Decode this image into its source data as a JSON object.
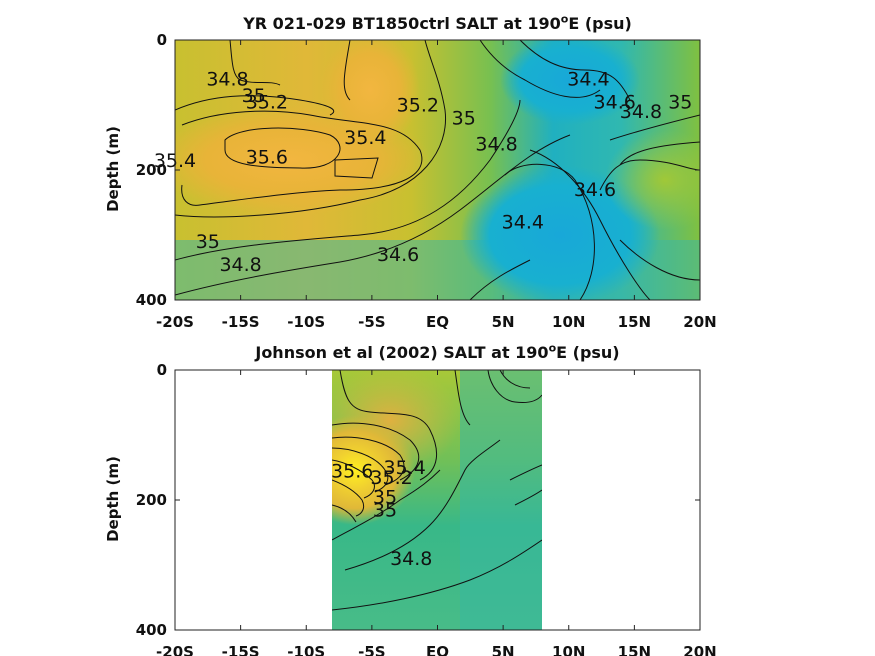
{
  "chart_data": [
    {
      "type": "heatmap",
      "title": "YR 021-029 BT1850ctrl SALT at 190",
      "title_sup": "o",
      "title_suffix": "E (psu)",
      "xlabel": "",
      "ylabel": "Depth (m)",
      "xticks": [
        "-20S",
        "-15S",
        "-10S",
        "-5S",
        "EQ",
        "5N",
        "10N",
        "15N",
        "20N"
      ],
      "yticks": [
        "0",
        "200",
        "400"
      ],
      "xlim": [
        -20,
        20
      ],
      "ylim": [
        0,
        400
      ],
      "data_extent": [
        -20,
        20
      ],
      "contour_labels": [
        {
          "text": "34.8",
          "lat": -16.0,
          "depth": 70
        },
        {
          "text": "35",
          "lat": -14.0,
          "depth": 95
        },
        {
          "text": "35.2",
          "lat": -13.0,
          "depth": 105
        },
        {
          "text": "35.4",
          "lat": -5.5,
          "depth": 160
        },
        {
          "text": "35.6",
          "lat": -13.0,
          "depth": 190
        },
        {
          "text": "35.4",
          "lat": -20.0,
          "depth": 195
        },
        {
          "text": "35.2",
          "lat": -1.5,
          "depth": 110
        },
        {
          "text": "35",
          "lat": 2.0,
          "depth": 130
        },
        {
          "text": "34.8",
          "lat": 4.5,
          "depth": 170
        },
        {
          "text": "34.4",
          "lat": 11.5,
          "depth": 70
        },
        {
          "text": "34.6",
          "lat": 13.5,
          "depth": 105
        },
        {
          "text": "34.8",
          "lat": 15.5,
          "depth": 120
        },
        {
          "text": "35",
          "lat": 18.5,
          "depth": 105
        },
        {
          "text": "34.6",
          "lat": 12.0,
          "depth": 240
        },
        {
          "text": "34.4",
          "lat": 6.5,
          "depth": 290
        },
        {
          "text": "35",
          "lat": -17.5,
          "depth": 320
        },
        {
          "text": "34.8",
          "lat": -15.0,
          "depth": 355
        },
        {
          "text": "34.6",
          "lat": -3.0,
          "depth": 340
        }
      ]
    },
    {
      "type": "heatmap",
      "title": "Johnson et al (2002) SALT at 190",
      "title_sup": "o",
      "title_suffix": "E (psu)",
      "xlabel": "",
      "ylabel": "Depth (m)",
      "xticks": [
        "-20S",
        "-15S",
        "-10S",
        "-5S",
        "EQ",
        "5N",
        "10N",
        "15N",
        "20N"
      ],
      "yticks": [
        "0",
        "200",
        "400"
      ],
      "xlim": [
        -20,
        20
      ],
      "ylim": [
        0,
        400
      ],
      "data_extent": [
        -8,
        8
      ],
      "contour_labels": [
        {
          "text": "35.4",
          "lat": -2.5,
          "depth": 160
        },
        {
          "text": "35.2",
          "lat": -3.5,
          "depth": 175
        },
        {
          "text": "35.6",
          "lat": -6.5,
          "depth": 165
        },
        {
          "text": "35",
          "lat": -4.0,
          "depth": 205
        },
        {
          "text": "35",
          "lat": -4.0,
          "depth": 225
        },
        {
          "text": "34.8",
          "lat": -2.0,
          "depth": 300
        }
      ]
    }
  ]
}
